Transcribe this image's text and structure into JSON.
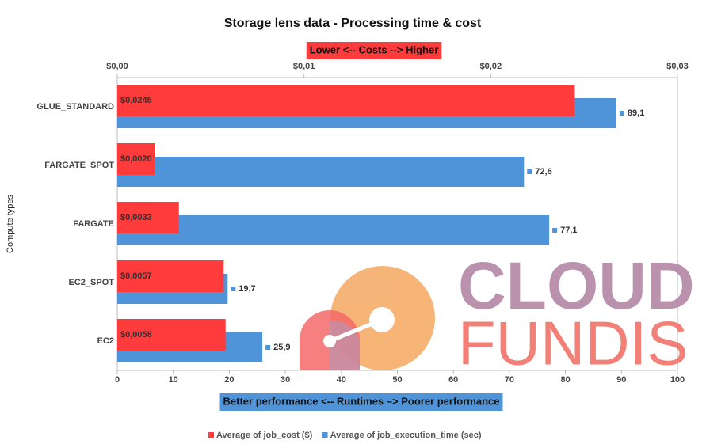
{
  "chart_data": {
    "type": "bar",
    "orientation": "horizontal",
    "title": "Storage lens data - Processing time & cost",
    "x2_axis_title": "Lower <-- Costs --> Higher",
    "x_axis_title": "Better performance <-- Runtimes –> Poorer performance",
    "y_axis_title": "Compute types",
    "categories": [
      "GLUE_STANDARD",
      "FARGATE_SPOT",
      "FARGATE",
      "EC2_SPOT",
      "EC2"
    ],
    "series": [
      {
        "name": "Average of job_cost ($)",
        "color": "#ff3b3b",
        "axis": "x2",
        "values": [
          0.0245,
          0.002,
          0.0033,
          0.0057,
          0.0058
        ],
        "value_labels": [
          "$0,0245",
          "$0,0020",
          "$0,0033",
          "$0,0057",
          "$0,0058"
        ]
      },
      {
        "name": "Average of job_execution_time (sec)",
        "color": "#4f94d8",
        "axis": "x",
        "values": [
          89.1,
          72.6,
          77.1,
          19.7,
          25.9
        ],
        "value_labels": [
          "89,1",
          "72,6",
          "77,1",
          "19,7",
          "25,9"
        ]
      }
    ],
    "xlim": [
      0,
      100
    ],
    "xticks": [
      0,
      10,
      20,
      30,
      40,
      50,
      60,
      70,
      80,
      90,
      100
    ],
    "x2lim": [
      0,
      0.03
    ],
    "x2ticks": [
      {
        "value": 0,
        "label": "$0,00"
      },
      {
        "value": 0.01,
        "label": "$0,01"
      },
      {
        "value": 0.02,
        "label": "$0,02"
      },
      {
        "value": 0.03,
        "label": "$0,03"
      }
    ],
    "legend": "bottom"
  },
  "watermark": {
    "line1": "CLOUD",
    "line2": "FUNDIS"
  }
}
